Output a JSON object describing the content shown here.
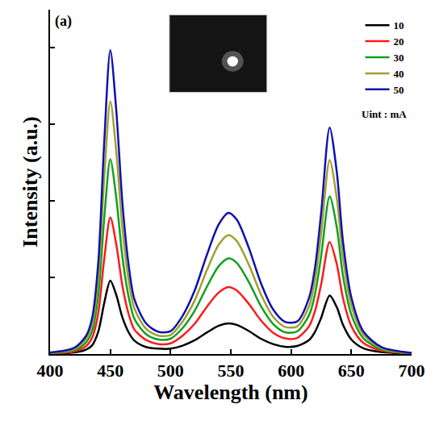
{
  "chart_data": {
    "type": "line",
    "x_label": "Wavelength (nm)",
    "y_label": "Intensity (a.u.)",
    "annotations": [
      {
        "text": "(a)"
      },
      {
        "text": "Uint : mA"
      }
    ],
    "x": [
      400,
      420,
      430,
      435,
      440,
      445,
      450,
      455,
      460,
      465,
      470,
      480,
      490,
      500,
      510,
      520,
      530,
      540,
      548,
      555,
      565,
      575,
      585,
      595,
      605,
      615,
      620,
      625,
      632,
      638,
      643,
      650,
      660,
      675,
      700
    ],
    "series": [
      {
        "name": "10",
        "color": "#000000",
        "values": [
          0.1,
          0.4,
          1.2,
          2.3,
          5.8,
          13.4,
          19.2,
          15.4,
          9.6,
          5.8,
          3.5,
          1.8,
          1.4,
          1.4,
          2.2,
          3.6,
          5.6,
          7.4,
          8.0,
          7.6,
          6.0,
          4.0,
          2.6,
          1.9,
          2.1,
          3.7,
          5.9,
          9.5,
          15.3,
          12.2,
          7.7,
          3.8,
          1.5,
          0.5,
          0.1
        ]
      },
      {
        "name": "20",
        "color": "#ff1a1a",
        "values": [
          0.2,
          0.7,
          2.1,
          4.3,
          10.7,
          25.0,
          35.7,
          28.6,
          17.9,
          10.7,
          6.4,
          3.6,
          2.6,
          2.8,
          4.8,
          7.9,
          12.3,
          16.1,
          17.5,
          16.6,
          13.1,
          8.8,
          5.6,
          4.1,
          4.2,
          7.3,
          11.4,
          18.3,
          29.3,
          23.4,
          14.7,
          7.3,
          2.9,
          0.9,
          0.1
        ]
      },
      {
        "name": "30",
        "color": "#10a020",
        "values": [
          0.3,
          1.0,
          3.1,
          6.1,
          15.3,
          35.6,
          50.9,
          40.7,
          25.5,
          15.3,
          9.2,
          5.1,
          3.8,
          4.0,
          6.8,
          11.3,
          17.5,
          23.0,
          25.0,
          23.8,
          18.8,
          12.5,
          7.9,
          5.7,
          5.9,
          10.2,
          15.9,
          25.7,
          41.2,
          33.0,
          20.6,
          10.3,
          4.1,
          1.2,
          0.2
        ]
      },
      {
        "name": "40",
        "color": "#a0a030",
        "values": [
          0.3,
          1.3,
          4.0,
          7.9,
          19.8,
          46.2,
          66.0,
          52.8,
          33.0,
          19.8,
          11.9,
          6.5,
          4.8,
          5.0,
          8.5,
          14.0,
          21.8,
          28.6,
          31.1,
          29.5,
          23.3,
          15.6,
          9.8,
          7.1,
          7.2,
          12.6,
          19.6,
          31.6,
          50.7,
          40.6,
          25.4,
          12.7,
          5.1,
          1.5,
          0.3
        ]
      },
      {
        "name": "50",
        "color": "#1010b0",
        "values": [
          0.4,
          1.6,
          4.8,
          9.5,
          23.8,
          55.6,
          79.4,
          63.5,
          39.7,
          23.8,
          14.3,
          7.9,
          5.8,
          6.0,
          10.0,
          16.6,
          25.8,
          33.9,
          36.9,
          35.1,
          27.7,
          18.5,
          11.7,
          8.4,
          8.5,
          14.8,
          22.9,
          37.0,
          59.2,
          47.4,
          29.6,
          14.8,
          5.9,
          1.8,
          0.3
        ]
      }
    ],
    "xlim": [
      400,
      700
    ],
    "xticks": [
      400,
      450,
      500,
      550,
      600,
      650,
      700
    ],
    "ylim": [
      0,
      90
    ],
    "yticks": [
      0,
      20,
      40,
      60,
      80
    ],
    "tick_labels": "x",
    "grid": false,
    "legend": "top right"
  }
}
